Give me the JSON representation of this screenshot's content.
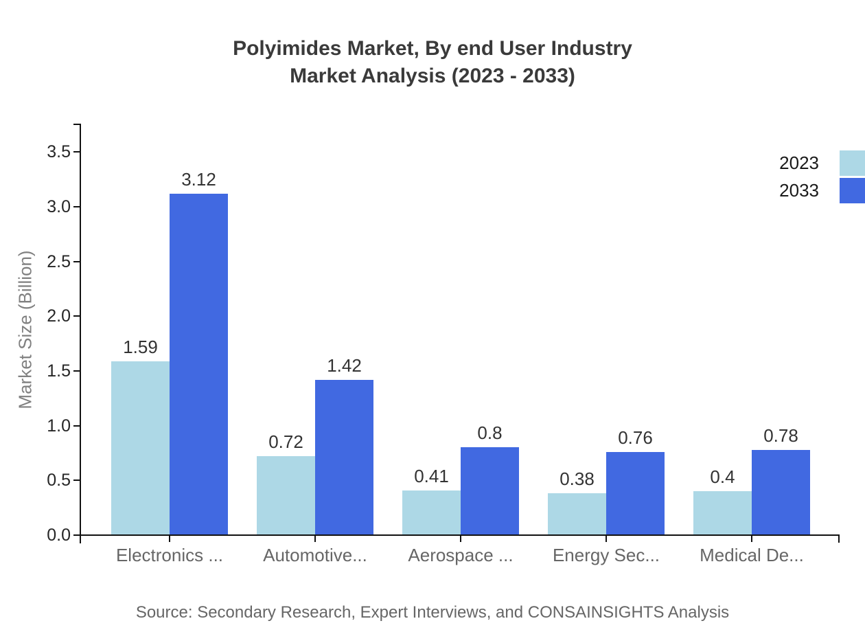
{
  "title": {
    "line1": "Polyimides Market, By end User Industry",
    "line2": "Market Analysis (2023 - 2033)"
  },
  "legend": {
    "items": [
      {
        "label": "2023",
        "color": "#ADD8E6"
      },
      {
        "label": "2033",
        "color": "#4169E1"
      }
    ]
  },
  "source_note": "Source: Secondary Research, Expert Interviews, and CONSAINSIGHTS Analysis",
  "chart_data": {
    "type": "bar",
    "title": "Polyimides Market, By end User Industry Market Analysis (2023 - 2033)",
    "categories": [
      "Electronics ...",
      "Automotive...",
      "Aerospace ...",
      "Energy Sec...",
      "Medical De..."
    ],
    "series": [
      {
        "name": "2023",
        "color": "#ADD8E6",
        "values": [
          1.59,
          0.72,
          0.41,
          0.38,
          0.4
        ]
      },
      {
        "name": "2033",
        "color": "#4169E1",
        "values": [
          3.12,
          1.42,
          0.8,
          0.76,
          0.78
        ]
      }
    ],
    "xlabel": "",
    "ylabel": "Market Size (Billion)",
    "ylim": [
      0,
      3.75
    ],
    "yticks": [
      {
        "value": 0.0,
        "label": "0.0"
      },
      {
        "value": 0.5,
        "label": "0.5"
      },
      {
        "value": 1.0,
        "label": "1.0"
      },
      {
        "value": 1.5,
        "label": "1.5"
      },
      {
        "value": 2.0,
        "label": "2.0"
      },
      {
        "value": 2.5,
        "label": "2.5"
      },
      {
        "value": 3.0,
        "label": "3.0"
      },
      {
        "value": 3.5,
        "label": "3.5"
      }
    ],
    "grid": false,
    "legend_position": "top-right",
    "value_labels_shown": true
  }
}
